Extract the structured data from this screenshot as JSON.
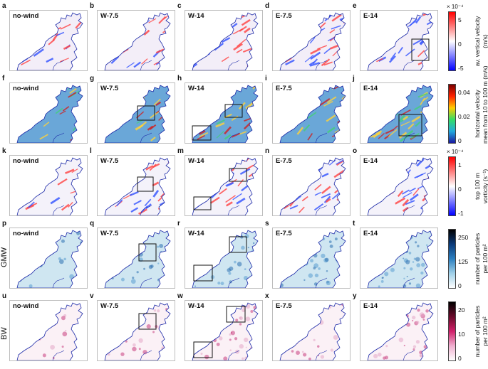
{
  "panel_letters": [
    "a",
    "b",
    "c",
    "d",
    "e",
    "f",
    "g",
    "h",
    "i",
    "j",
    "k",
    "l",
    "m",
    "n",
    "o",
    "p",
    "q",
    "r",
    "s",
    "t",
    "u",
    "v",
    "w",
    "x",
    "y"
  ],
  "scenarios": [
    "no-wind",
    "W-7.5",
    "W-14",
    "E-7.5",
    "E-14"
  ],
  "row_side_labels": [
    "",
    "",
    "",
    "GMW",
    "BW"
  ],
  "colorbars": [
    {
      "title_lines": [
        "av. vertical velocity",
        "(m/s)"
      ],
      "exponent": "× 10⁻⁴",
      "ticks": [
        "5",
        "0",
        "-5"
      ],
      "colors": [
        "#ff0000",
        "#ffffff",
        "#0000ff"
      ]
    },
    {
      "title_lines": [
        "horizontal velocity",
        "mean from 10 to 100 m (m/s)"
      ],
      "exponent": "",
      "ticks": [
        "0.04",
        "0.02",
        "0"
      ],
      "colors": [
        "#7a0000",
        "#ff2200",
        "#ffcc00",
        "#33dd66",
        "#22aadd",
        "#1a1aa0"
      ]
    },
    {
      "title_lines": [
        "top 100 m",
        "vorticity (s⁻¹)"
      ],
      "exponent": "× 10⁻⁴",
      "ticks": [
        "1",
        "0",
        "-1"
      ],
      "colors": [
        "#ff0000",
        "#ffffff",
        "#0000ff"
      ]
    },
    {
      "title_lines": [
        "number of particles",
        "per 100 m²"
      ],
      "exponent": "",
      "ticks": [
        "250",
        "125",
        "0"
      ],
      "colors": [
        "#000000",
        "#0a3a7a",
        "#2b7fc0",
        "#9fd0e8",
        "#ffffff"
      ]
    },
    {
      "title_lines": [
        "number of particles",
        "per 100 m²"
      ],
      "exponent": "",
      "ticks": [
        "20",
        "10",
        "0"
      ],
      "colors": [
        "#000000",
        "#6a0a2a",
        "#d0206a",
        "#f0b0d0",
        "#ffffff"
      ]
    }
  ]
}
